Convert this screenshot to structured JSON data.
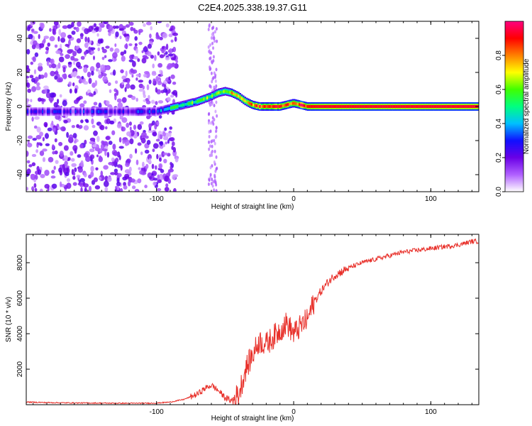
{
  "chart_data": [
    {
      "type": "heatmap",
      "title": "C2E4.2025.338.19.37.G11",
      "xlabel": "Height of straight line (km)",
      "ylabel": "Frequency (Hz)",
      "xlim": [
        -195,
        135
      ],
      "ylim": [
        -50,
        50
      ],
      "xticks": [
        "-100",
        "0",
        "100"
      ],
      "xtick_values": [
        -100,
        0,
        100
      ],
      "yticks": [
        "-40",
        "-20",
        "0",
        "20",
        "40"
      ],
      "ytick_values": [
        -40,
        -20,
        0,
        20,
        40
      ],
      "colorbar": {
        "label": "Normalized spectral amplitude",
        "ticks": [
          "0.0",
          "0.2",
          "0.4",
          "0.6",
          "0.8"
        ],
        "tick_values": [
          0.0,
          0.2,
          0.4,
          0.6,
          0.8
        ],
        "range": [
          0,
          1
        ],
        "stops": [
          "#ffffff",
          "#b060ff",
          "#6a00e6",
          "#1010ff",
          "#00c0ff",
          "#00ff80",
          "#40ff00",
          "#ffff00",
          "#ff8000",
          "#ff0000",
          "#ff0080"
        ]
      },
      "ridge": {
        "description_values": "dominant frequency (Hz) vs height (km)",
        "x": [
          -195,
          -150,
          -100,
          -95,
          -90,
          -80,
          -70,
          -60,
          -55,
          -50,
          -45,
          -40,
          -35,
          -30,
          -25,
          -20,
          -15,
          -10,
          -5,
          0,
          5,
          10,
          20,
          60,
          100,
          135
        ],
        "y": [
          -3,
          -3,
          -3,
          -2,
          -1,
          1,
          3,
          6,
          8,
          9,
          8,
          6,
          3,
          1,
          0,
          0,
          0,
          0,
          1,
          2,
          1,
          0,
          0,
          0,
          0,
          0
        ],
        "amplitude": [
          0.2,
          0.22,
          0.25,
          0.4,
          0.5,
          0.55,
          0.55,
          0.6,
          0.62,
          0.6,
          0.7,
          0.78,
          0.7,
          0.8,
          0.85,
          0.85,
          0.88,
          0.86,
          0.85,
          0.85,
          0.88,
          0.9,
          0.92,
          0.93,
          0.93,
          0.93
        ]
      }
    },
    {
      "type": "line",
      "title": "",
      "xlabel": "Height of straight line (km)",
      "ylabel": "SNR (10 * v/v)",
      "xlim": [
        -195,
        135
      ],
      "ylim": [
        0,
        9600
      ],
      "xticks": [
        "-100",
        "0",
        "100"
      ],
      "xtick_values": [
        -100,
        0,
        100
      ],
      "yticks": [
        "2000",
        "4000",
        "6000",
        "8000"
      ],
      "ytick_values": [
        2000,
        4000,
        6000,
        8000
      ],
      "series": [
        {
          "name": "SNR",
          "color": "#e8302a",
          "x": [
            -195,
            -180,
            -160,
            -140,
            -120,
            -100,
            -90,
            -80,
            -70,
            -65,
            -60,
            -55,
            -50,
            -45,
            -40,
            -35,
            -30,
            -25,
            -20,
            -15,
            -10,
            -5,
            0,
            5,
            10,
            15,
            20,
            25,
            30,
            40,
            50,
            60,
            70,
            80,
            90,
            100,
            110,
            120,
            130,
            135
          ],
          "y": [
            150,
            120,
            100,
            90,
            80,
            90,
            150,
            300,
            600,
            900,
            1100,
            800,
            400,
            200,
            600,
            2000,
            2800,
            3600,
            3400,
            3800,
            4200,
            4600,
            4000,
            4400,
            4800,
            5800,
            6400,
            6900,
            7300,
            7700,
            8000,
            8200,
            8400,
            8600,
            8700,
            8800,
            8900,
            9000,
            9200,
            9200
          ]
        }
      ]
    }
  ]
}
